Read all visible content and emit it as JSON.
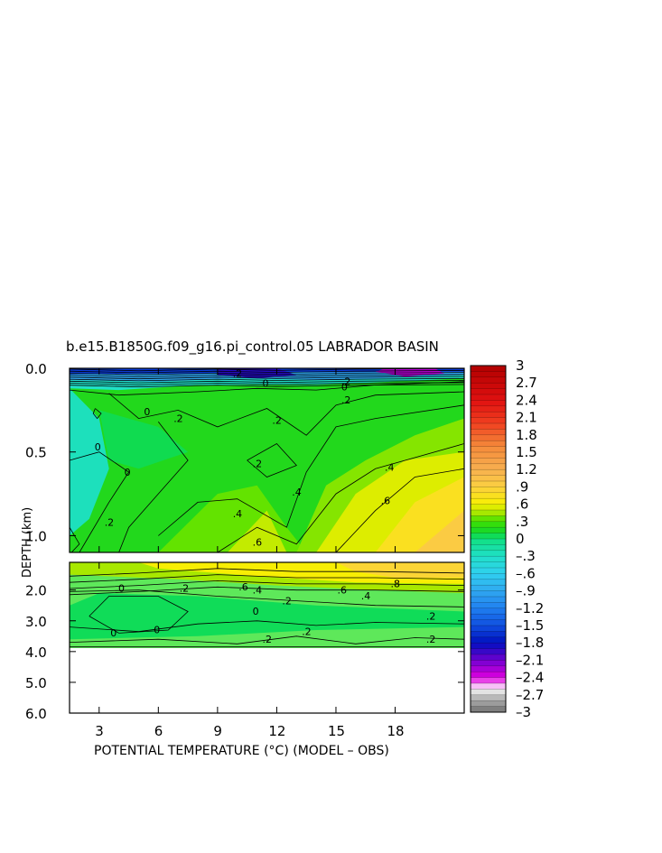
{
  "chart_data": {
    "type": "contour",
    "title": "b.e15.B1850G.f09_g16.pi_control.05 LABRADOR BASIN",
    "xlabel": "POTENTIAL TEMPERATURE (°C) (MODEL – OBS)",
    "ylabel": "DEPTH (km)",
    "xlim": [
      1.5,
      21.5
    ],
    "x_ticks": [
      "3",
      "6",
      "9",
      "12",
      "15",
      "18"
    ],
    "x_tick_values": [
      3,
      6,
      9,
      12,
      15,
      18
    ],
    "upper_panel": {
      "ylim": [
        0.0,
        1.1
      ],
      "y_ticks": [
        "0.0",
        "0.5",
        "1.0"
      ],
      "y_tick_values": [
        0.0,
        0.5,
        1.0
      ]
    },
    "lower_panel": {
      "ylim": [
        1.1,
        6.0
      ],
      "y_ticks": [
        "2.0",
        "3.0",
        "4.0",
        "5.0",
        "6.0"
      ],
      "y_tick_values": [
        2.0,
        3.0,
        4.0,
        5.0,
        6.0
      ],
      "data_bottom_km": 3.9
    },
    "colorbar": {
      "range": [
        -3,
        3
      ],
      "labels": [
        "3",
        "2.7",
        "2.4",
        "2.1",
        "1.8",
        "1.5",
        "1.2",
        ".9",
        ".6",
        ".3",
        "0",
        "–.3",
        "–.6",
        "–.9",
        "–1.2",
        "–1.5",
        "–1.8",
        "–2.1",
        "–2.4",
        "–2.7",
        "–3"
      ],
      "label_values": [
        3,
        2.7,
        2.4,
        2.1,
        1.8,
        1.5,
        1.2,
        0.9,
        0.6,
        0.3,
        0,
        -0.3,
        -0.6,
        -0.9,
        -1.2,
        -1.5,
        -1.8,
        -2.1,
        -2.4,
        -2.7,
        -3
      ]
    },
    "contour_labels": [
      {
        "text": ".2",
        "x": 7.0,
        "panel": "upper",
        "depth": 0.31
      },
      {
        "text": ".2",
        "x": 11.0,
        "panel": "upper",
        "depth": 0.58
      },
      {
        "text": ".2",
        "x": 12.0,
        "panel": "upper",
        "depth": 0.32
      },
      {
        "text": ".2",
        "x": 15.5,
        "panel": "upper",
        "depth": 0.2
      },
      {
        "text": ".4",
        "x": 10.0,
        "panel": "upper",
        "depth": 0.88
      },
      {
        "text": ".4",
        "x": 13.0,
        "panel": "upper",
        "depth": 0.75
      },
      {
        "text": ".4",
        "x": 17.7,
        "panel": "upper",
        "depth": 0.6
      },
      {
        "text": ".6",
        "x": 11.0,
        "panel": "upper",
        "depth": 1.05
      },
      {
        "text": ".6",
        "x": 17.5,
        "panel": "upper",
        "depth": 0.8
      },
      {
        "text": ".2",
        "x": 3.5,
        "panel": "upper",
        "depth": 0.93
      },
      {
        "text": "0",
        "x": 5.5,
        "panel": "upper",
        "depth": 0.27
      },
      {
        "text": "0",
        "x": 11.5,
        "panel": "upper",
        "depth": 0.1
      },
      {
        "text": "0",
        "x": 15.5,
        "panel": "upper",
        "depth": 0.12
      },
      {
        "text": "0",
        "x": 3.0,
        "panel": "upper",
        "depth": 0.48
      },
      {
        "text": "0",
        "x": 4.5,
        "panel": "upper",
        "depth": 0.63
      },
      {
        "text": ".2",
        "x": 10.0,
        "panel": "upper",
        "depth": 0.04
      },
      {
        "text": ".2",
        "x": 15.5,
        "panel": "upper",
        "depth": 0.09
      },
      {
        "text": "0",
        "x": 4.2,
        "panel": "lower",
        "depth": 2.0
      },
      {
        "text": ".2",
        "x": 7.3,
        "panel": "lower",
        "depth": 2.0
      },
      {
        "text": ".6",
        "x": 10.3,
        "panel": "lower",
        "depth": 1.95
      },
      {
        "text": ".4",
        "x": 11.0,
        "panel": "lower",
        "depth": 2.05
      },
      {
        "text": ".2",
        "x": 12.5,
        "panel": "lower",
        "depth": 2.4
      },
      {
        "text": "0",
        "x": 11.0,
        "panel": "lower",
        "depth": 2.75
      },
      {
        "text": ".6",
        "x": 15.3,
        "panel": "lower",
        "depth": 2.05
      },
      {
        "text": ".4",
        "x": 16.5,
        "panel": "lower",
        "depth": 2.25
      },
      {
        "text": ".8",
        "x": 18.0,
        "panel": "lower",
        "depth": 1.85
      },
      {
        "text": ".2",
        "x": 19.8,
        "panel": "lower",
        "depth": 2.9
      },
      {
        "text": "0",
        "x": 3.8,
        "panel": "lower",
        "depth": 3.45
      },
      {
        "text": "0",
        "x": 6.0,
        "panel": "lower",
        "depth": 3.35
      },
      {
        "text": ".2",
        "x": 11.5,
        "panel": "lower",
        "depth": 3.65
      },
      {
        "text": ".2",
        "x": 13.5,
        "panel": "lower",
        "depth": 3.4
      },
      {
        "text": ".2",
        "x": 19.8,
        "panel": "lower",
        "depth": 3.65
      }
    ]
  }
}
